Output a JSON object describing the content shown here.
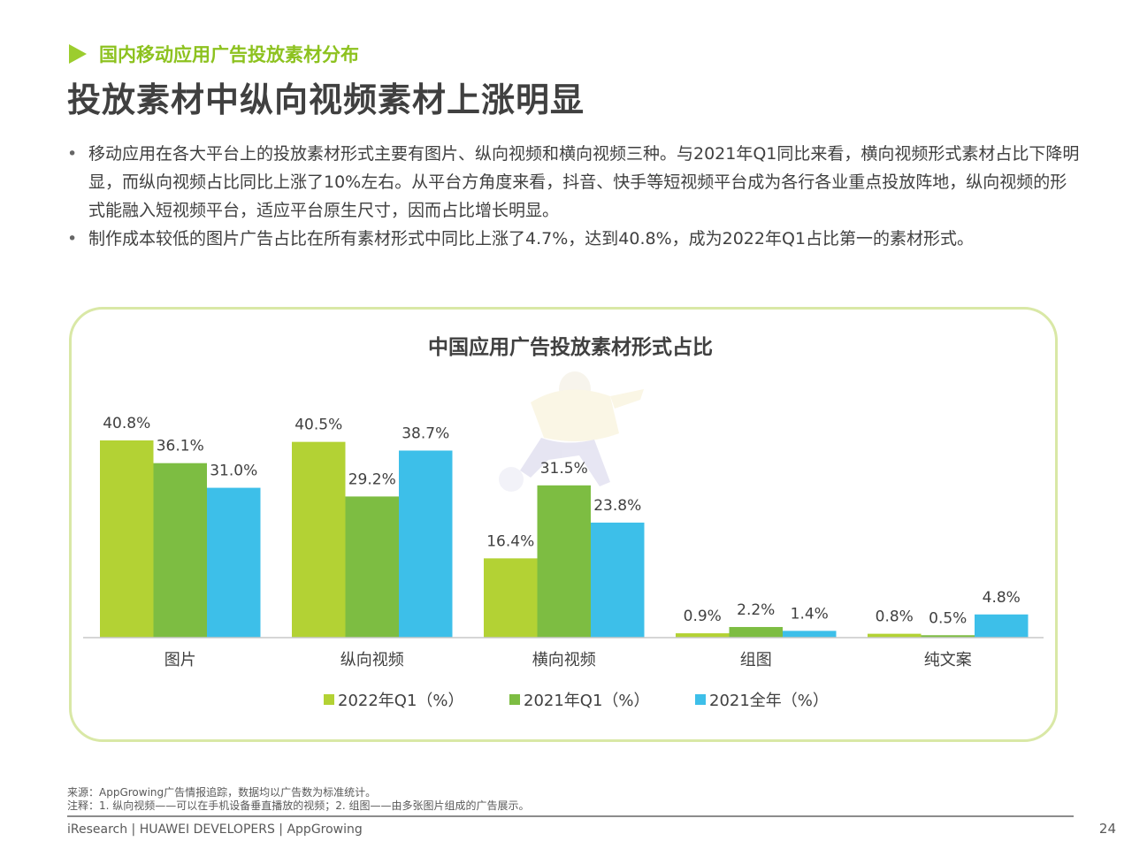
{
  "header": {
    "section_label": "国内移动应用广告投放素材分布",
    "title": "投放素材中纵向视频素材上涨明显"
  },
  "bullets": [
    "移动应用在各大平台上的投放素材形式主要有图片、纵向视频和横向视频三种。与2021年Q1同比来看，横向视频形式素材占比下降明显，而纵向视频占比同比上涨了10%左右。从平台方角度来看，抖音、快手等短视频平台成为各行各业重点投放阵地，纵向视频的形式能融入短视频平台，适应平台原生尺寸，因而占比增长明显。",
    "制作成本较低的图片广告占比在所有素材形式中同比上涨了4.7%，达到40.8%，成为2022年Q1占比第一的素材形式。"
  ],
  "chart_data": {
    "type": "bar",
    "title": "中国应用广告投放素材形式占比",
    "categories": [
      "图片",
      "纵向视频",
      "横向视频",
      "组图",
      "纯文案"
    ],
    "series": [
      {
        "name": "2022年Q1（%）",
        "values": [
          40.8,
          40.5,
          16.4,
          0.9,
          0.8
        ],
        "labels": [
          "40.8%",
          "40.5%",
          "16.4%",
          "0.9%",
          "0.8%"
        ],
        "color": "#b3d234"
      },
      {
        "name": "2021年Q1（%）",
        "values": [
          36.1,
          29.2,
          31.5,
          2.2,
          0.5
        ],
        "labels": [
          "36.1%",
          "29.2%",
          "31.5%",
          "2.2%",
          "0.5%"
        ],
        "color": "#7dbd42"
      },
      {
        "name": "2021全年（%）",
        "values": [
          31.0,
          38.7,
          23.8,
          1.4,
          4.8
        ],
        "labels": [
          "31.0%",
          "38.7%",
          "23.8%",
          "1.4%",
          "4.8%"
        ],
        "color": "#3dbfe9"
      }
    ],
    "ylim": [
      0,
      42
    ],
    "legend": "bottom",
    "grid": false
  },
  "footer": {
    "source": "来源：AppGrowing广告情报追踪，数据均以广告数为标准统计。",
    "note": "注释：1. 纵向视频——可以在手机设备垂直播放的视频；2. 组图——由多张图片组成的广告展示。",
    "brand": "iResearch | HUAWEI DEVELOPERS | AppGrowing",
    "page": "24"
  },
  "colors": {
    "accent_green": "#8dc21f",
    "box_border": "#d9e8a6"
  }
}
